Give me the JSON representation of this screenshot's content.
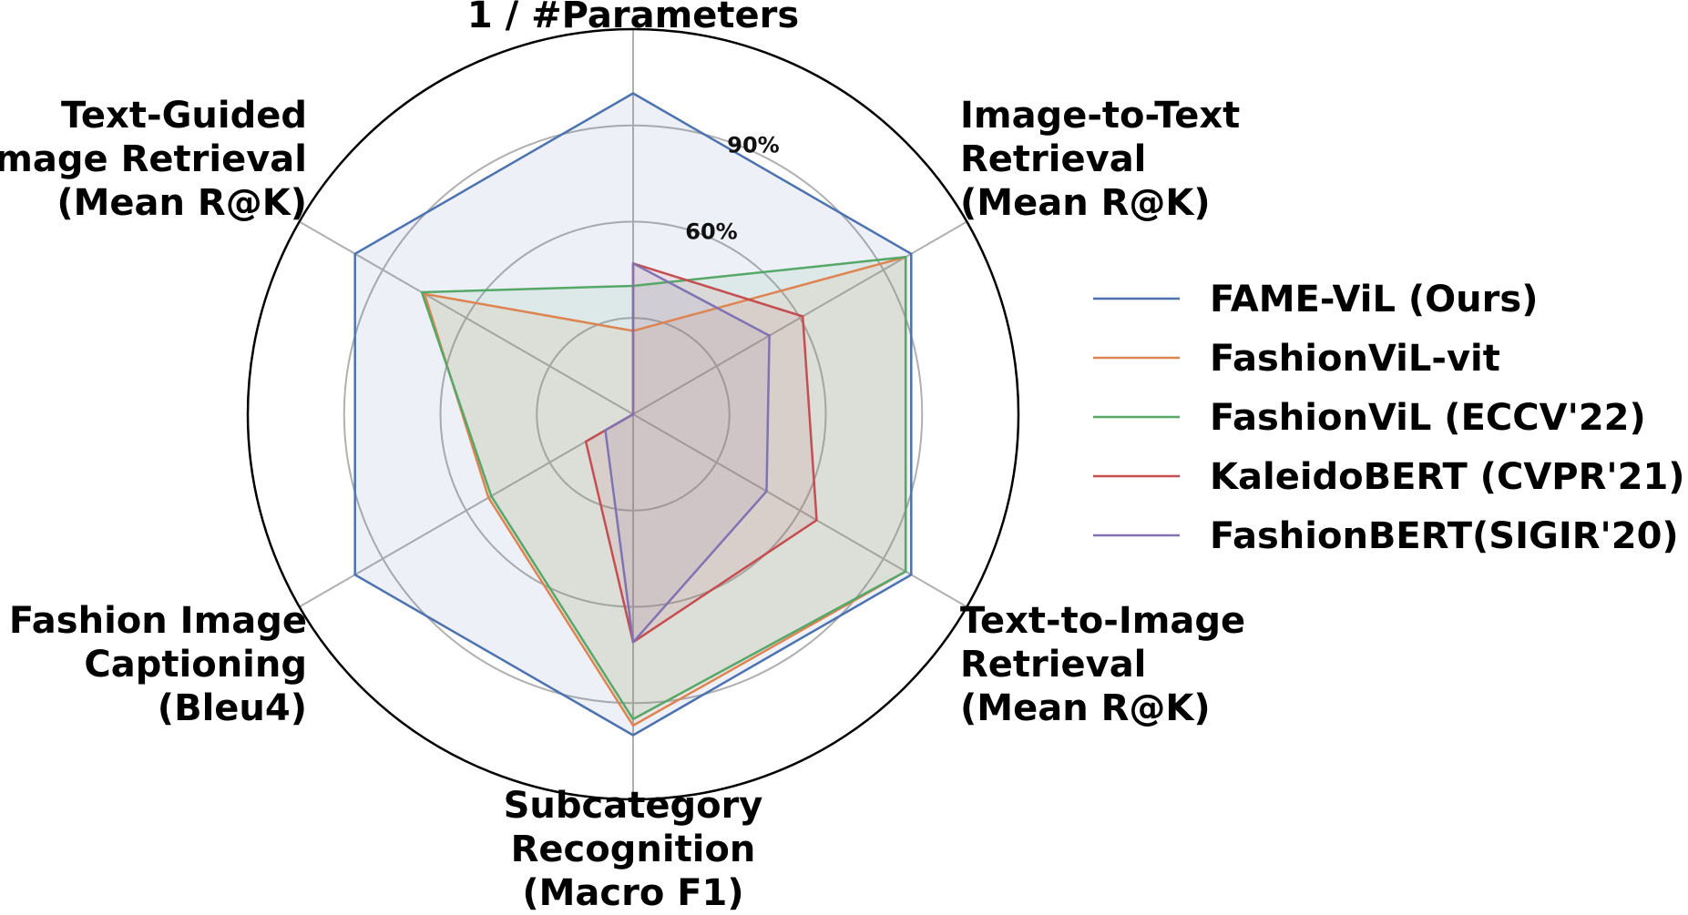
{
  "chart_data": {
    "type": "radar",
    "axes": [
      [
        "1 / #Parameters"
      ],
      [
        "Image-to-Text",
        "Retrieval",
        "(Mean R@K)"
      ],
      [
        "Text-to-Image",
        "Retrieval",
        "(Mean R@K)"
      ],
      [
        "Subcategory",
        "Recognition",
        "(Macro F1)"
      ],
      [
        "Fashion Image",
        "Captioning",
        "(Bleu4)"
      ],
      [
        "Text-Guided",
        "Image Retrieval",
        "(Mean R@K)"
      ]
    ],
    "radial_ticks": [
      {
        "value": 30,
        "label": ""
      },
      {
        "value": 60,
        "label": "60%"
      },
      {
        "value": 90,
        "label": "90%"
      }
    ],
    "rmax": 120,
    "grid": true,
    "legend_position": "right",
    "series": [
      {
        "name": "FAME-ViL (Ours)",
        "color": "#4C72B0",
        "values": [
          100,
          100,
          100,
          100,
          100,
          100
        ]
      },
      {
        "name": "FashionViL-vit",
        "color": "#DD8452",
        "values": [
          26,
          98,
          98,
          97,
          52,
          75
        ]
      },
      {
        "name": "FashionViL (ECCV'22)",
        "color": "#55A868",
        "values": [
          40,
          98,
          98,
          95,
          51,
          76
        ]
      },
      {
        "name": "KaleidoBERT (CVPR'21)",
        "color": "#C44E52",
        "values": [
          47,
          61,
          66,
          71,
          17,
          0
        ]
      },
      {
        "name": "FashionBERT(SIGIR'20)",
        "color": "#8172B3",
        "values": [
          47,
          49,
          48,
          71,
          10,
          0
        ]
      }
    ]
  }
}
